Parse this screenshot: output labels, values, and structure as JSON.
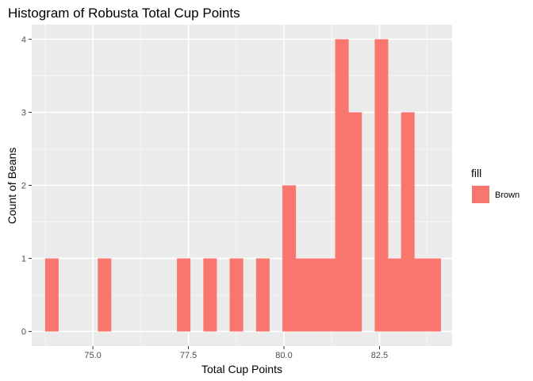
{
  "chart_data": {
    "type": "bar",
    "title": "Histogram of Robusta Total Cup Points",
    "xlabel": "Total Cup Points",
    "ylabel": "Count of Beans",
    "xlim": [
      73.4,
      84.4
    ],
    "ylim": [
      -0.2,
      4.2
    ],
    "x_ticks": [
      75.0,
      77.5,
      80.0,
      82.5
    ],
    "x_tick_labels": [
      "75.0",
      "77.5",
      "80.0",
      "82.5"
    ],
    "y_ticks": [
      0,
      1,
      2,
      3,
      4
    ],
    "y_tick_labels": [
      "0",
      "1",
      "2",
      "3",
      "4"
    ],
    "grid": true,
    "bin_width": 0.345,
    "bins_start": 73.75,
    "counts": [
      1,
      0,
      0,
      0,
      1,
      0,
      0,
      0,
      0,
      0,
      1,
      0,
      1,
      0,
      1,
      0,
      1,
      0,
      2,
      1,
      1,
      1,
      4,
      3,
      0,
      4,
      1,
      3,
      1,
      1
    ],
    "legend": {
      "title": "fill",
      "position": "right",
      "entries": [
        {
          "label": "Brown",
          "color": "#F8766D"
        }
      ]
    },
    "colors": {
      "bar": "#F8766D",
      "panel": "#EBEBEB",
      "grid_major": "#FFFFFF",
      "grid_minor": "#F5F5F5"
    }
  }
}
